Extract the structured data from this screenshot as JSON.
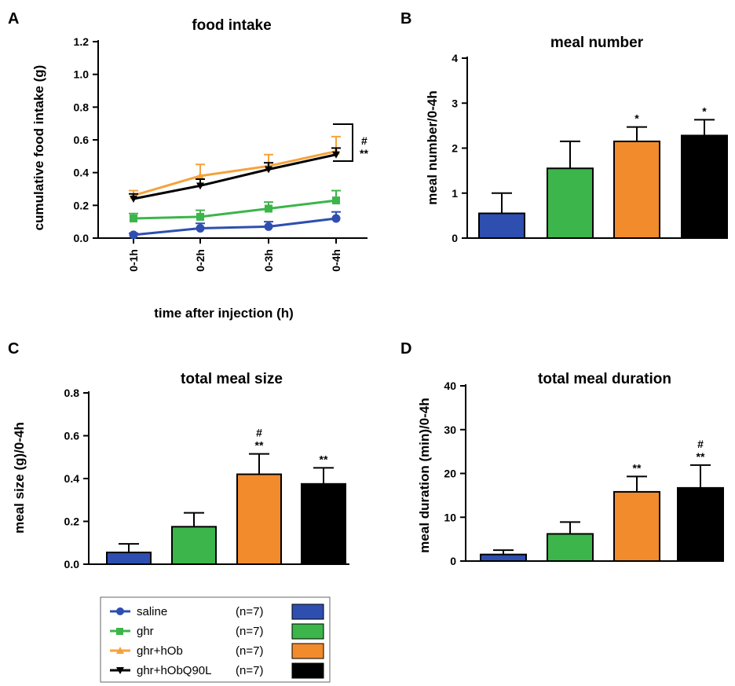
{
  "colors": {
    "saline": "#2e4fb0",
    "ghr": "#3cb54a",
    "ghr_hOb": "#f28b2c",
    "ghr_hObQ90L": "#000000",
    "hOb_line": "#f5a23c"
  },
  "legend": [
    {
      "name": "saline",
      "n": "(n=7)",
      "color_key": "saline"
    },
    {
      "name": "ghr",
      "n": "(n=7)",
      "color_key": "ghr"
    },
    {
      "name": "ghr+hOb",
      "n": "(n=7)",
      "color_key": "ghr_hOb"
    },
    {
      "name": "ghr+hObQ90L",
      "n": "(n=7)",
      "color_key": "ghr_hObQ90L"
    }
  ],
  "chart_data": [
    {
      "panel": "A",
      "type": "line",
      "title": "food intake",
      "xlabel": "time after injection (h)",
      "ylabel": "cumulative food intake (g)",
      "x": [
        "0-1h",
        "0-2h",
        "0-3h",
        "0-4h"
      ],
      "ylim": [
        0,
        1.2
      ],
      "yticks": [
        "0.0",
        "0.2",
        "0.4",
        "0.6",
        "0.8",
        "1.0",
        "1.2"
      ],
      "series": [
        {
          "name": "saline",
          "values": [
            0.02,
            0.06,
            0.07,
            0.12
          ],
          "err": [
            0.01,
            0.03,
            0.03,
            0.04
          ]
        },
        {
          "name": "ghr",
          "values": [
            0.12,
            0.13,
            0.18,
            0.23
          ],
          "err": [
            0.03,
            0.04,
            0.04,
            0.06
          ]
        },
        {
          "name": "ghr+hOb",
          "values": [
            0.26,
            0.38,
            0.44,
            0.53
          ],
          "err": [
            0.03,
            0.07,
            0.07,
            0.09
          ]
        },
        {
          "name": "ghr+hObQ90L",
          "values": [
            0.24,
            0.32,
            0.42,
            0.51
          ],
          "err": [
            0.03,
            0.04,
            0.04,
            0.04
          ]
        }
      ],
      "annotations": [
        "#",
        "**"
      ]
    },
    {
      "panel": "B",
      "type": "bar",
      "title": "meal number",
      "xlabel": "",
      "ylabel": "meal number/0-4h",
      "categories": [
        "saline",
        "ghr",
        "ghr+hOb",
        "ghr+hObQ90L"
      ],
      "values": [
        0.55,
        1.55,
        2.15,
        2.28
      ],
      "err": [
        0.45,
        0.6,
        0.32,
        0.35
      ],
      "sig": [
        "",
        "",
        "*",
        "*"
      ],
      "sig2": [
        "",
        "",
        "",
        ""
      ],
      "ylim": [
        0,
        4
      ],
      "yticks": [
        "0",
        "1",
        "2",
        "3",
        "4"
      ]
    },
    {
      "panel": "C",
      "type": "bar",
      "title": "total meal size",
      "xlabel": "",
      "ylabel": "meal size (g)/0-4h",
      "categories": [
        "saline",
        "ghr",
        "ghr+hOb",
        "ghr+hObQ90L"
      ],
      "values": [
        0.055,
        0.175,
        0.42,
        0.375
      ],
      "err": [
        0.04,
        0.065,
        0.095,
        0.075
      ],
      "sig": [
        "",
        "",
        "**",
        "**"
      ],
      "sig2": [
        "",
        "",
        "#",
        ""
      ],
      "ylim": [
        0,
        0.8
      ],
      "yticks": [
        "0.0",
        "0.2",
        "0.4",
        "0.6",
        "0.8"
      ]
    },
    {
      "panel": "D",
      "type": "bar",
      "title": "total meal duration",
      "xlabel": "",
      "ylabel": "meal duration (min)/0-4h",
      "categories": [
        "saline",
        "ghr",
        "ghr+hOb",
        "ghr+hObQ90L"
      ],
      "values": [
        1.5,
        6.2,
        15.8,
        16.7
      ],
      "err": [
        1.0,
        2.7,
        3.5,
        5.2
      ],
      "sig": [
        "",
        "",
        "**",
        "**"
      ],
      "sig2": [
        "",
        "",
        "",
        "#"
      ],
      "ylim": [
        0,
        40
      ],
      "yticks": [
        "0",
        "10",
        "20",
        "30",
        "40"
      ]
    }
  ]
}
